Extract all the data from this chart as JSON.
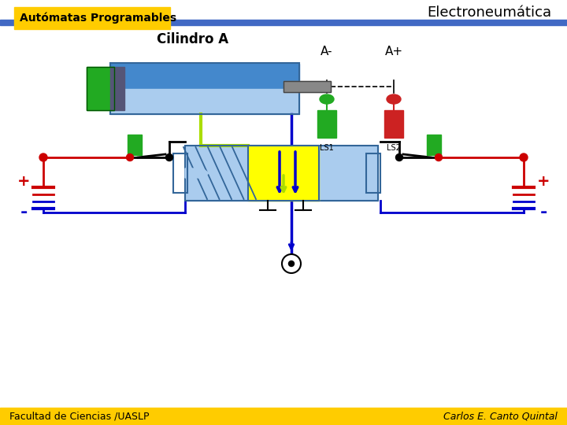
{
  "title": "Electroneumática",
  "subtitle": "Autómatas Programables",
  "diagram_title": "Cilindro A",
  "label_Aminus": "A-",
  "label_Aplus": "A+",
  "label_LS1": "LS1",
  "label_LS2": "LS2",
  "footer_left": "Facultad de Ciencias /UASLP",
  "footer_right": "Carlos E. Canto Quintal",
  "bg_color": "#ffffff",
  "header_bar_color": "#4169c4",
  "subtitle_box_color": "#ffcc00",
  "subtitle_text_color": "#000000",
  "footer_bar_color": "#ffcc00",
  "cyl_top_color": "#4488cc",
  "cyl_bot_color": "#aaccee",
  "cyl_end_color": "#22aa22",
  "cyl_rod_color": "#888888",
  "ls1_color": "#22aa22",
  "ls2_color": "#cc2222",
  "valve_blue_color": "#aaccee",
  "valve_yellow_color": "#ffff00",
  "green_wire": "#aadd00",
  "blue_wire": "#0000cc",
  "red_wire": "#cc0000",
  "black_wire": "#000000",
  "batt_red": "#cc0000",
  "batt_blue": "#0000cc"
}
